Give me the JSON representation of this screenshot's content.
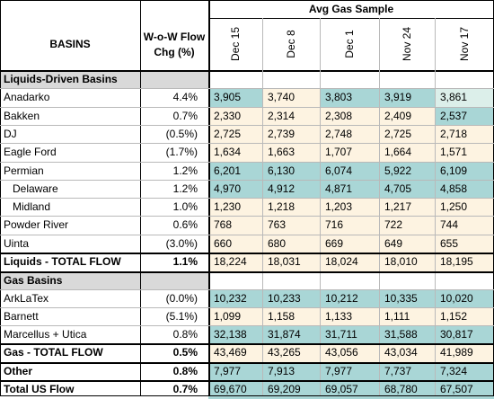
{
  "chart_data": {
    "type": "table",
    "title": "Avg Gas Sample",
    "columns": {
      "basins": "BASINS",
      "wow_line1": "W-o-W Flow",
      "wow_line2": "Chg (%)",
      "dates": [
        "Dec 15",
        "Dec 8",
        "Dec 1",
        "Nov 24",
        "Nov 17"
      ]
    },
    "sections": {
      "liquids": "Liquids-Driven Basins",
      "gas": "Gas Basins"
    },
    "rows": [
      {
        "label": "Anadarko",
        "chg": "4.4%",
        "values": [
          "3,905",
          "3,740",
          "3,803",
          "3,919",
          "3,861"
        ]
      },
      {
        "label": "Bakken",
        "chg": "0.7%",
        "values": [
          "2,330",
          "2,314",
          "2,308",
          "2,409",
          "2,537"
        ]
      },
      {
        "label": "DJ",
        "chg": "(0.5%)",
        "values": [
          "2,725",
          "2,739",
          "2,748",
          "2,725",
          "2,718"
        ]
      },
      {
        "label": "Eagle Ford",
        "chg": "(1.7%)",
        "values": [
          "1,634",
          "1,663",
          "1,707",
          "1,664",
          "1,571"
        ]
      },
      {
        "label": "Permian",
        "chg": "1.2%",
        "values": [
          "6,201",
          "6,130",
          "6,074",
          "5,922",
          "6,109"
        ]
      },
      {
        "label": "Delaware",
        "chg": "1.2%",
        "values": [
          "4,970",
          "4,912",
          "4,871",
          "4,705",
          "4,858"
        ]
      },
      {
        "label": "Midland",
        "chg": "1.0%",
        "values": [
          "1,230",
          "1,218",
          "1,203",
          "1,217",
          "1,250"
        ]
      },
      {
        "label": "Powder River",
        "chg": "0.6%",
        "values": [
          "768",
          "763",
          "716",
          "722",
          "744"
        ]
      },
      {
        "label": "Uinta",
        "chg": "(3.0%)",
        "values": [
          "660",
          "680",
          "669",
          "649",
          "655"
        ]
      },
      {
        "label": "Liquids - TOTAL FLOW",
        "chg": "1.1%",
        "values": [
          "18,224",
          "18,031",
          "18,024",
          "18,010",
          "18,195"
        ]
      },
      {
        "label": "ArkLaTex",
        "chg": "(0.0%)",
        "values": [
          "10,232",
          "10,233",
          "10,212",
          "10,335",
          "10,020"
        ]
      },
      {
        "label": "Barnett",
        "chg": "(5.1%)",
        "values": [
          "1,099",
          "1,158",
          "1,133",
          "1,111",
          "1,152"
        ]
      },
      {
        "label": "Marcellus + Utica",
        "chg": "0.8%",
        "values": [
          "32,138",
          "31,874",
          "31,711",
          "31,588",
          "30,817"
        ]
      },
      {
        "label": "Gas - TOTAL FLOW",
        "chg": "0.5%",
        "values": [
          "43,469",
          "43,265",
          "43,056",
          "43,034",
          "41,989"
        ]
      },
      {
        "label": "Other",
        "chg": "0.8%",
        "values": [
          "7,977",
          "7,913",
          "7,977",
          "7,737",
          "7,324"
        ]
      },
      {
        "label": "Total US Flow",
        "chg": "0.7%",
        "values": [
          "69,670",
          "69,209",
          "69,057",
          "68,780",
          "67,507"
        ]
      }
    ],
    "colors": {
      "teal_dark": "#a9d6d6",
      "teal_light": "#dcefea",
      "cream": "#fdf3e1",
      "section_gray": "#d9d9d9"
    }
  }
}
